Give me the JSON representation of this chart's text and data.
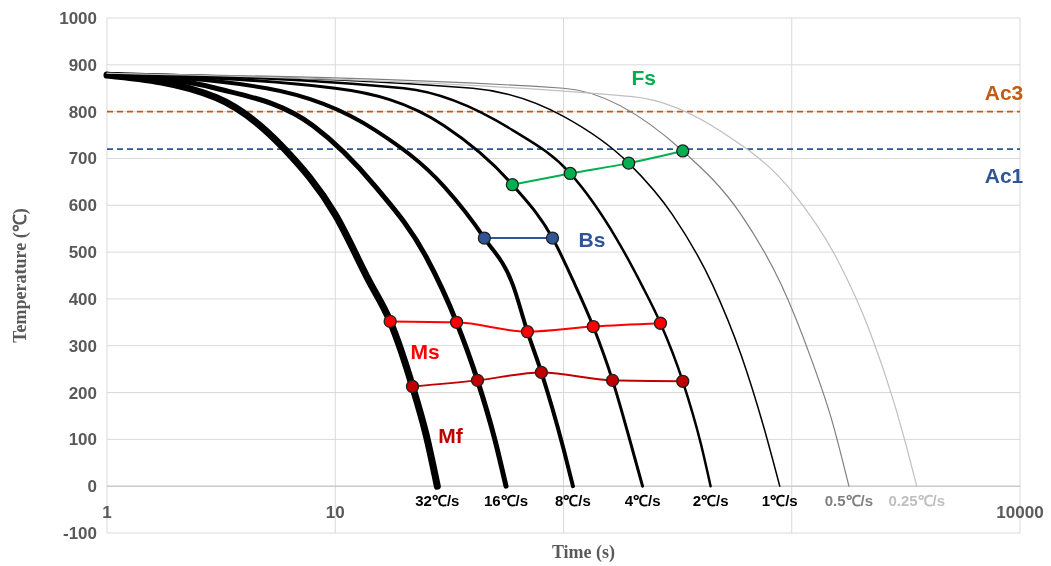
{
  "chart_data": {
    "type": "line",
    "xlabel": "Time (s)",
    "ylabel": "Temperature (℃)",
    "log": "x",
    "xlim": [
      1,
      10000
    ],
    "ylim": [
      -100,
      1000
    ],
    "xticks": [
      {
        "value": 1,
        "label": "1"
      },
      {
        "value": 10,
        "label": "10"
      },
      {
        "value": 100,
        "label": null
      },
      {
        "value": 1000,
        "label": null
      },
      {
        "value": 10000,
        "label": "10000"
      }
    ],
    "yticks": [
      -100,
      0,
      100,
      200,
      300,
      400,
      500,
      600,
      700,
      800,
      900,
      1000
    ],
    "grid": true,
    "ref_lines": [
      {
        "axis": "y",
        "value": 800,
        "label": "Ac3",
        "color": "#c55a11",
        "line_style": "dashed"
      },
      {
        "axis": "y",
        "value": 720,
        "label": "Ac1",
        "color": "#2f5597",
        "line_style": "dashed"
      }
    ],
    "series": [
      {
        "name": "32℃/s",
        "color": "#000000",
        "marker": "none",
        "x": [
          1,
          3,
          6,
          10,
          14,
          17.4,
          21.8,
          25,
          28
        ],
        "values": [
          878,
          830,
          720,
          580,
          440,
          352,
          213,
          110,
          0
        ]
      },
      {
        "name": "16℃/s",
        "color": "#000000",
        "marker": "none",
        "x": [
          1,
          3,
          8,
          15,
          25,
          34,
          42,
          50,
          56
        ],
        "values": [
          880,
          850,
          770,
          640,
          490,
          350,
          226,
          100,
          0
        ]
      },
      {
        "name": "8℃/s",
        "color": "#000000",
        "marker": "none",
        "x": [
          1,
          5,
          15,
          30,
          45,
          60,
          69.5,
          80,
          100,
          110
        ],
        "values": [
          880,
          850,
          760,
          640,
          530,
          430,
          330,
          243,
          80,
          0
        ]
      },
      {
        "name": "4℃/s",
        "color": "#000000",
        "marker": "none",
        "x": [
          1,
          10,
          30,
          59.7,
          89.5,
          110,
          135,
          164,
          200,
          222
        ],
        "values": [
          880,
          850,
          770,
          644,
          530,
          440,
          341,
          226,
          80,
          0
        ]
      },
      {
        "name": "2℃/s",
        "color": "#000000",
        "marker": "none",
        "x": [
          1,
          20,
          60,
          107,
          170,
          220,
          266,
          333,
          400,
          441
        ],
        "values": [
          882,
          850,
          760,
          668,
          530,
          430,
          348,
          224,
          90,
          0
        ]
      },
      {
        "name": "1℃/s",
        "color": "#000000",
        "marker": "none",
        "x": [
          1,
          40,
          100,
          193,
          300,
          450,
          600,
          750,
          886
        ],
        "values": [
          882,
          850,
          790,
          690,
          580,
          430,
          280,
          130,
          0
        ]
      },
      {
        "name": "0.5℃/s",
        "color": "#7f7f7f",
        "marker": "none",
        "x": [
          1,
          100,
          333,
          600,
          900,
          1200,
          1500,
          1780
        ],
        "values": [
          882,
          850,
          716,
          580,
          430,
          280,
          140,
          0
        ]
      },
      {
        "name": "0.25℃/s",
        "color": "#bfbfbf",
        "marker": "none",
        "x": [
          1,
          200,
          500,
          1000,
          1600,
          2200,
          2800,
          3200,
          3530
        ],
        "values": [
          882,
          832,
          755,
          630,
          480,
          330,
          180,
          80,
          0
        ]
      },
      {
        "name": "Fs",
        "color": "#00b050",
        "marker": "circle",
        "x": [
          59.7,
          107,
          193,
          333
        ],
        "values": [
          644,
          668,
          690,
          716
        ]
      },
      {
        "name": "Bs",
        "color": "#2f5597",
        "marker": "circle",
        "x": [
          45,
          89.5
        ],
        "values": [
          530,
          530
        ]
      },
      {
        "name": "Ms",
        "color": "#ff0000",
        "marker": "circle",
        "x": [
          17.4,
          34,
          69.5,
          135,
          266
        ],
        "values": [
          352,
          350,
          330,
          341,
          348
        ]
      },
      {
        "name": "Mf",
        "color": "#c00000",
        "marker": "circle",
        "x": [
          21.8,
          42,
          80,
          164,
          333
        ],
        "values": [
          213,
          226,
          243,
          226,
          224
        ]
      }
    ]
  }
}
